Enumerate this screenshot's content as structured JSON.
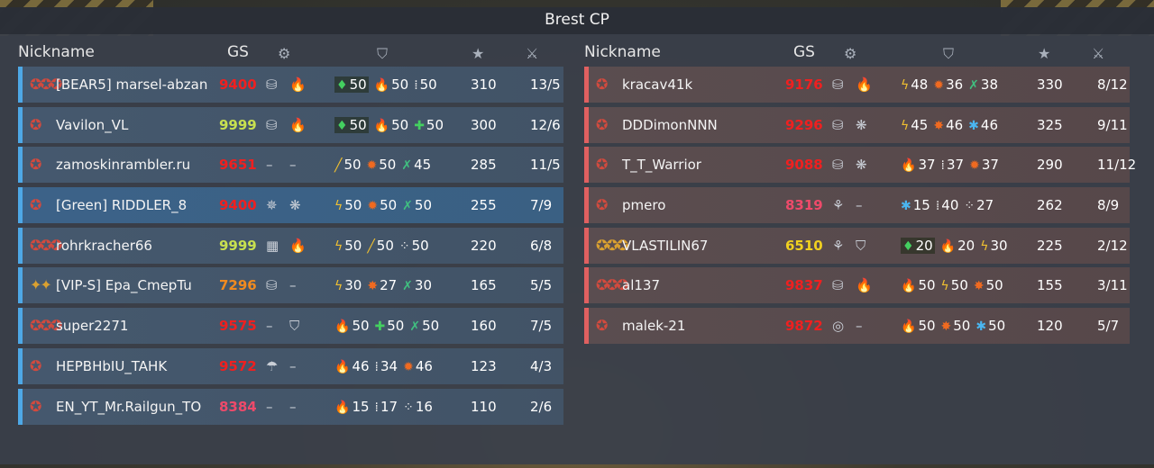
{
  "title": "Brest CP",
  "headers": {
    "nickname": "Nickname",
    "gs": "GS"
  },
  "colors": {
    "team_a_accent": "#4ea8e6",
    "team_b_accent": "#e06060",
    "gs_red": "#ef2020",
    "gs_green": "#c8e050",
    "gs_orange": "#f08a20",
    "gs_pink": "#ee4a6a",
    "gs_yellow": "#f0d020"
  },
  "team_a": [
    {
      "rank": "✪✪✪",
      "nick": "[BEAR5] marsel-abzan",
      "gs": "9400",
      "gs_color": "#ef2020",
      "eq1": "⛁",
      "eq2": "🔥",
      "perks": [
        {
          "icon": "♦",
          "color": "c-green",
          "val": "50",
          "hl": true
        },
        {
          "icon": "🔥",
          "color": "c-orange",
          "val": "50"
        },
        {
          "icon": "⁞",
          "color": "c-white",
          "val": "50"
        }
      ],
      "kills": "310",
      "kd": "13/5"
    },
    {
      "rank": "✪",
      "nick": "Vavilon_VL",
      "gs": "9999",
      "gs_color": "#c8e050",
      "eq1": "⛁",
      "eq2": "🔥",
      "perks": [
        {
          "icon": "♦",
          "color": "c-green",
          "val": "50",
          "hl": true
        },
        {
          "icon": "🔥",
          "color": "c-orange",
          "val": "50"
        },
        {
          "icon": "✚",
          "color": "c-green",
          "val": "50"
        }
      ],
      "kills": "300",
      "kd": "12/6"
    },
    {
      "rank": "✪",
      "nick": "zamoskinrambler.ru",
      "gs": "9651",
      "gs_color": "#ef2020",
      "eq1": "–",
      "eq2": "–",
      "perks": [
        {
          "icon": "╱",
          "color": "c-gold",
          "val": "50"
        },
        {
          "icon": "✹",
          "color": "c-orange",
          "val": "50"
        },
        {
          "icon": "✗",
          "color": "c-teal",
          "val": "45"
        }
      ],
      "kills": "285",
      "kd": "11/5"
    },
    {
      "rank": "✪",
      "nick": "[Green] RIDDLER_8",
      "gs": "9400",
      "gs_color": "#ef2020",
      "eq1": "✵",
      "eq2": "❋",
      "perks": [
        {
          "icon": "ϟ",
          "color": "c-gold",
          "val": "50"
        },
        {
          "icon": "✹",
          "color": "c-orange",
          "val": "50"
        },
        {
          "icon": "✗",
          "color": "c-teal",
          "val": "50"
        }
      ],
      "kills": "255",
      "kd": "7/9",
      "highlight": true
    },
    {
      "rank": "✪✪✪",
      "nick": "rohrkracher66",
      "gs": "9999",
      "gs_color": "#c8e050",
      "eq1": "▦",
      "eq2": "🔥",
      "perks": [
        {
          "icon": "ϟ",
          "color": "c-gold",
          "val": "50"
        },
        {
          "icon": "╱",
          "color": "c-gold",
          "val": "50"
        },
        {
          "icon": "⁘",
          "color": "c-white",
          "val": "50"
        }
      ],
      "kills": "220",
      "kd": "6/8"
    },
    {
      "rank": "✦✦",
      "nick": "[VIP-S] Epa_CmepTu",
      "gs": "7296",
      "gs_color": "#f08a20",
      "eq1": "⛁",
      "eq2": "–",
      "perks": [
        {
          "icon": "ϟ",
          "color": "c-gold",
          "val": "30"
        },
        {
          "icon": "✸",
          "color": "c-orange",
          "val": "27"
        },
        {
          "icon": "✗",
          "color": "c-teal",
          "val": "30"
        }
      ],
      "kills": "165",
      "kd": "5/5",
      "gold_rank": true
    },
    {
      "rank": "✪✪✪",
      "nick": "super2271",
      "gs": "9575",
      "gs_color": "#ef2020",
      "eq1": "–",
      "eq2": "⛉",
      "perks": [
        {
          "icon": "🔥",
          "color": "c-orange",
          "val": "50"
        },
        {
          "icon": "✚",
          "color": "c-green",
          "val": "50"
        },
        {
          "icon": "✗",
          "color": "c-teal",
          "val": "50"
        }
      ],
      "kills": "160",
      "kd": "7/5"
    },
    {
      "rank": "✪",
      "nick": "HEPBHbIU_TAHK",
      "gs": "9572",
      "gs_color": "#ef2020",
      "eq1": "☂",
      "eq2": "–",
      "perks": [
        {
          "icon": "🔥",
          "color": "c-orange",
          "val": "46"
        },
        {
          "icon": "⁞",
          "color": "c-white",
          "val": "34"
        },
        {
          "icon": "✹",
          "color": "c-orange",
          "val": "46"
        }
      ],
      "kills": "123",
      "kd": "4/3"
    },
    {
      "rank": "✪",
      "nick": "EN_YT_Mr.Railgun_TO",
      "gs": "8384",
      "gs_color": "#ee4a6a",
      "eq1": "–",
      "eq2": "–",
      "perks": [
        {
          "icon": "🔥",
          "color": "c-orange",
          "val": "15"
        },
        {
          "icon": "⁞",
          "color": "c-white",
          "val": "17"
        },
        {
          "icon": "⁘",
          "color": "c-white",
          "val": "16"
        }
      ],
      "kills": "110",
      "kd": "2/6"
    }
  ],
  "team_b": [
    {
      "rank": "✪",
      "nick": "kracav41k",
      "gs": "9176",
      "gs_color": "#ef2020",
      "eq1": "⛁",
      "eq2": "🔥",
      "perks": [
        {
          "icon": "ϟ",
          "color": "c-gold",
          "val": "48"
        },
        {
          "icon": "✹",
          "color": "c-orange",
          "val": "36"
        },
        {
          "icon": "✗",
          "color": "c-teal",
          "val": "38"
        }
      ],
      "kills": "330",
      "kd": "8/12"
    },
    {
      "rank": "✪",
      "nick": "DDDimonNNN",
      "gs": "9296",
      "gs_color": "#ef2020",
      "eq1": "⛁",
      "eq2": "❋",
      "perks": [
        {
          "icon": "ϟ",
          "color": "c-gold",
          "val": "45"
        },
        {
          "icon": "✸",
          "color": "c-orange",
          "val": "46"
        },
        {
          "icon": "✱",
          "color": "c-blue",
          "val": "46"
        }
      ],
      "kills": "325",
      "kd": "9/11"
    },
    {
      "rank": "✪",
      "nick": "T_T_Warrior",
      "gs": "9088",
      "gs_color": "#ef2020",
      "eq1": "⛁",
      "eq2": "❋",
      "perks": [
        {
          "icon": "🔥",
          "color": "c-orange",
          "val": "37"
        },
        {
          "icon": "⁞",
          "color": "c-white",
          "val": "37"
        },
        {
          "icon": "✹",
          "color": "c-orange",
          "val": "37"
        }
      ],
      "kills": "290",
      "kd": "11/12"
    },
    {
      "rank": "✪",
      "nick": "pmero",
      "gs": "8319",
      "gs_color": "#ee4a6a",
      "eq1": "⚘",
      "eq2": "–",
      "perks": [
        {
          "icon": "✱",
          "color": "c-blue",
          "val": "15"
        },
        {
          "icon": "⁞",
          "color": "c-white",
          "val": "40"
        },
        {
          "icon": "⁘",
          "color": "c-white",
          "val": "27"
        }
      ],
      "kills": "262",
      "kd": "8/9"
    },
    {
      "rank": "✪✪✪",
      "nick": "VLASTILIN67",
      "gs": "6510",
      "gs_color": "#f0d020",
      "eq1": "⚘",
      "eq2": "⛉",
      "perks": [
        {
          "icon": "♦",
          "color": "c-green",
          "val": "20",
          "hl": true
        },
        {
          "icon": "🔥",
          "color": "c-orange",
          "val": "20"
        },
        {
          "icon": "ϟ",
          "color": "c-gold",
          "val": "30"
        }
      ],
      "kills": "225",
      "kd": "2/12",
      "gold_rank": true
    },
    {
      "rank": "✪✪✪",
      "nick": "al137",
      "gs": "9837",
      "gs_color": "#ef2020",
      "eq1": "⛁",
      "eq2": "🔥",
      "perks": [
        {
          "icon": "🔥",
          "color": "c-orange",
          "val": "50"
        },
        {
          "icon": "ϟ",
          "color": "c-gold",
          "val": "50"
        },
        {
          "icon": "✸",
          "color": "c-orange",
          "val": "50"
        }
      ],
      "kills": "155",
      "kd": "3/11"
    },
    {
      "rank": "✪",
      "nick": "malek-21",
      "gs": "9872",
      "gs_color": "#ef2020",
      "eq1": "◎",
      "eq2": "–",
      "perks": [
        {
          "icon": "🔥",
          "color": "c-orange",
          "val": "50"
        },
        {
          "icon": "✸",
          "color": "c-orange",
          "val": "50"
        },
        {
          "icon": "✱",
          "color": "c-blue",
          "val": "50"
        }
      ],
      "kills": "120",
      "kd": "5/7"
    }
  ]
}
